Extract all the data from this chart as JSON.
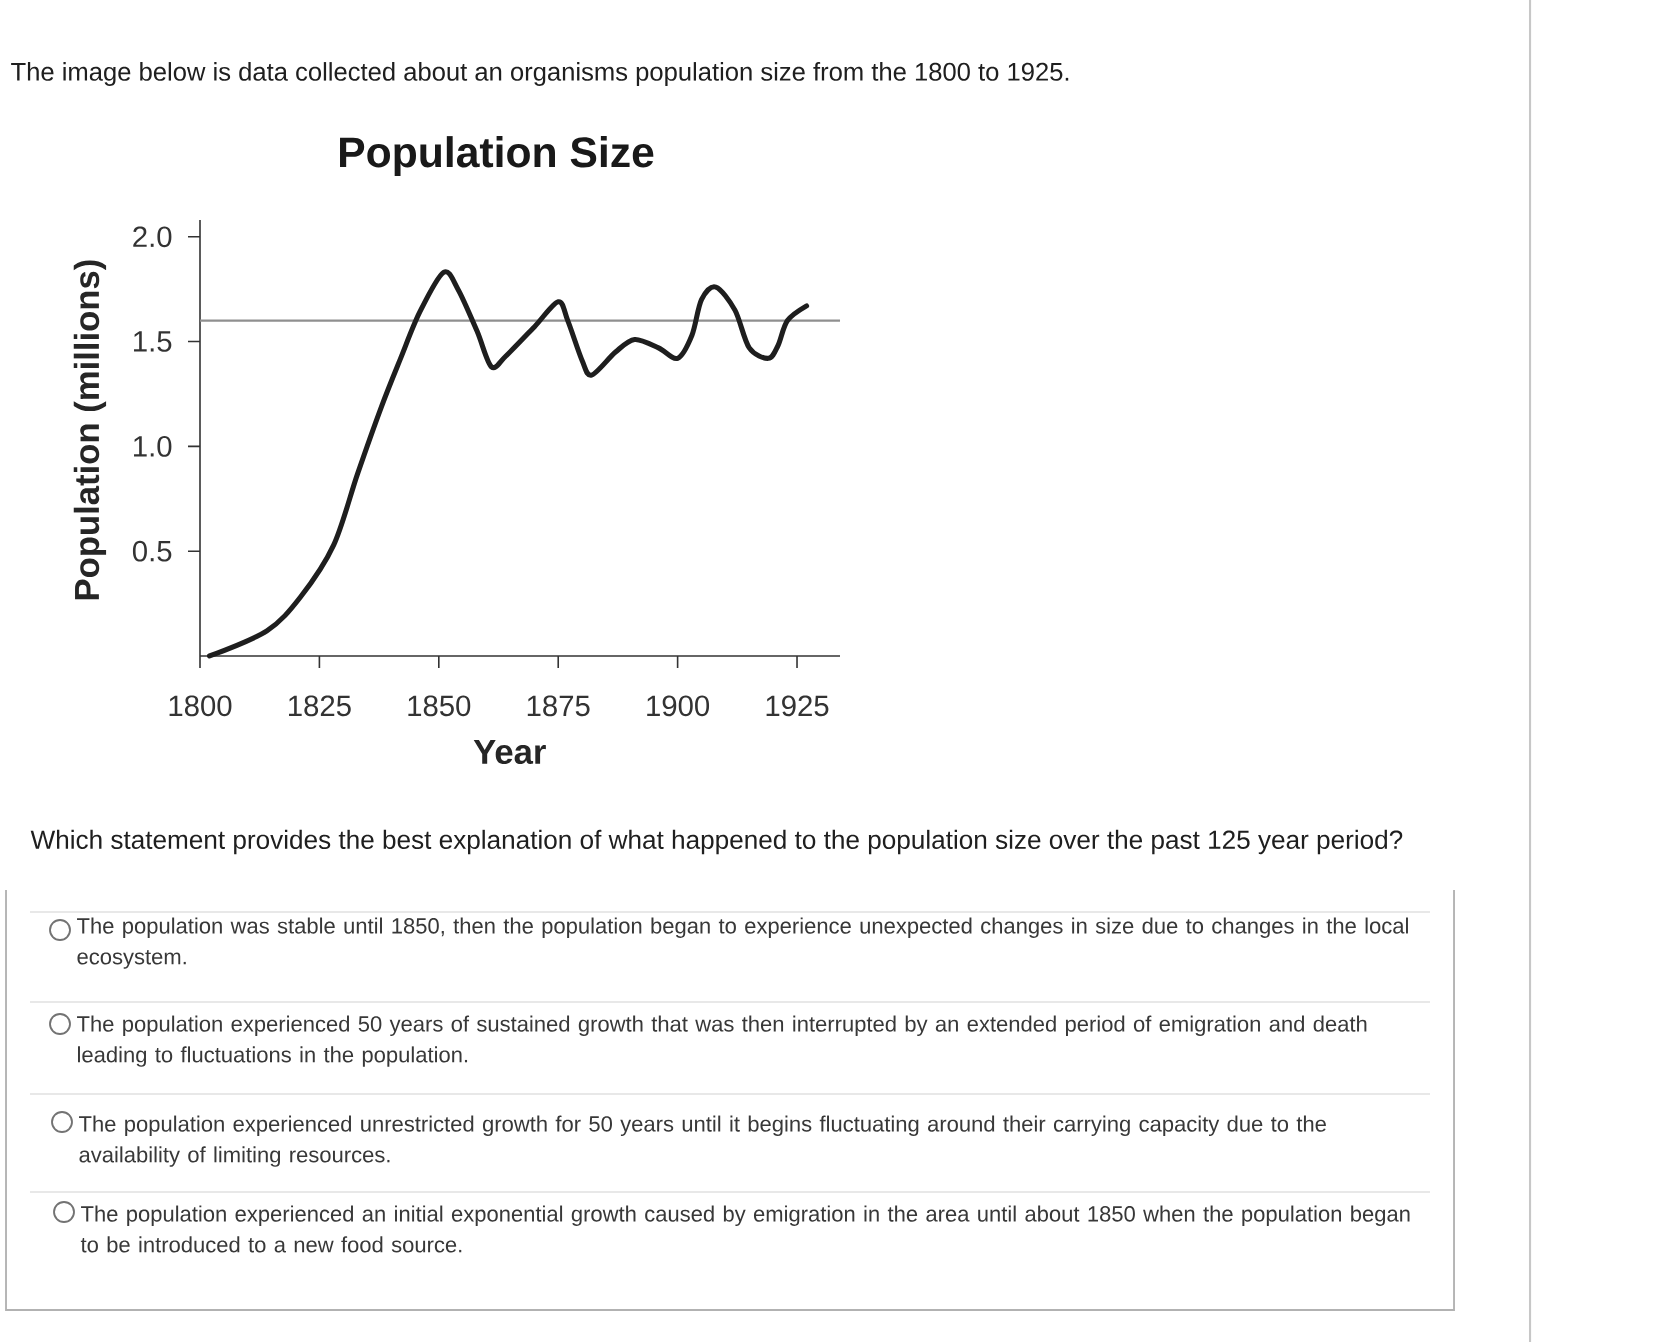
{
  "chart_data": {
    "type": "line",
    "title": "Population Size",
    "xlabel": "Year",
    "ylabel": "Population (millions)",
    "annotations": [
      "The image below is data collected about an organisms population size from the 1800 to 1925.",
      "Which statement provides the best explanation of what happened to the population size over the past 125 year period?",
      "The population was stable until 1850, then the population began to experience unexpected changes in size due to changes in the local ecosystem.",
      "The population experienced 50 years of sustained growth that was then interrupted by an extended period of emigration and death leading to fluctuations in the population.",
      "The population experienced unrestricted growth for 50 years until it begins fluctuating around their carrying capacity due to the availability of limiting resources.",
      "The population experienced an initial exponential growth caused by emigration in the area until about 1850 when the population began to be introduced to a new food source."
    ],
    "x": [
      1802,
      1814,
      1821,
      1828,
      1833,
      1838,
      1842,
      1846,
      1851,
      1854,
      1858,
      1861,
      1864,
      1870,
      1875,
      1877,
      1880,
      1882,
      1887,
      1891,
      1896,
      1900,
      1903,
      1905,
      1908,
      1912,
      1915,
      1919,
      1921,
      1923,
      1927
    ],
    "series": [
      {
        "color": "#1e1e1e",
        "values": [
          0.0,
          0.12,
          0.28,
          0.53,
          0.87,
          1.19,
          1.42,
          1.64,
          1.83,
          1.75,
          1.55,
          1.38,
          1.43,
          1.57,
          1.69,
          1.6,
          1.41,
          1.34,
          1.45,
          1.51,
          1.47,
          1.42,
          1.53,
          1.7,
          1.76,
          1.65,
          1.47,
          1.42,
          1.48,
          1.6,
          1.67
        ]
      }
    ],
    "xlim": [
      1800,
      1934
    ],
    "xticks": [
      1800,
      1825,
      1850,
      1875,
      1900,
      1925
    ],
    "ylim": [
      0,
      2.08
    ],
    "yticks": [
      0.5,
      {
        "value": 1,
        "label": "1.0"
      },
      1.5,
      {
        "value": 2,
        "label": "2.0"
      }
    ],
    "ref_lines": [
      {
        "axis": "y",
        "value": 1.6,
        "color": "#8f8f8f"
      }
    ]
  }
}
